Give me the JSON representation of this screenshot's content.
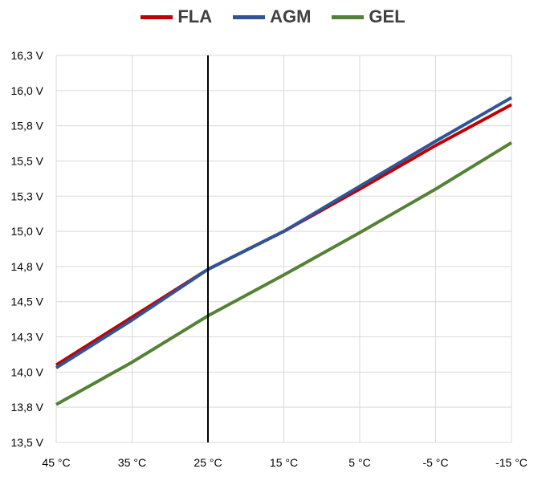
{
  "chart_data": {
    "type": "line",
    "x": [
      45,
      35,
      25,
      15,
      5,
      -5,
      -15
    ],
    "x_tick_labels": [
      "45 °C",
      "35 °C",
      "25 °C",
      "15 °C",
      "5 °C",
      "-5 °C",
      "-15 °C"
    ],
    "xlim": [
      45,
      -15
    ],
    "x_reversed": true,
    "y_tick_labels": [
      "13,5 V",
      "13,8 V",
      "14,0 V",
      "14,3 V",
      "14,5 V",
      "14,8 V",
      "15,0 V",
      "15,3 V",
      "15,5 V",
      "15,8 V",
      "16,0 V",
      "16,3 V"
    ],
    "ylim": [
      13.5,
      16.25
    ],
    "grid": true,
    "legend_position": "top-center",
    "reference_line_x": 25,
    "series": [
      {
        "name": "FLA",
        "color": "#C00000",
        "values": [
          14.05,
          14.39,
          14.73,
          15.0,
          15.3,
          15.61,
          15.9
        ]
      },
      {
        "name": "AGM",
        "color": "#2F5597",
        "values": [
          14.03,
          14.37,
          14.73,
          15.0,
          15.32,
          15.64,
          15.95
        ]
      },
      {
        "name": "GEL",
        "color": "#548235",
        "values": [
          13.77,
          14.07,
          14.4,
          14.69,
          14.99,
          15.3,
          15.63
        ]
      }
    ]
  }
}
